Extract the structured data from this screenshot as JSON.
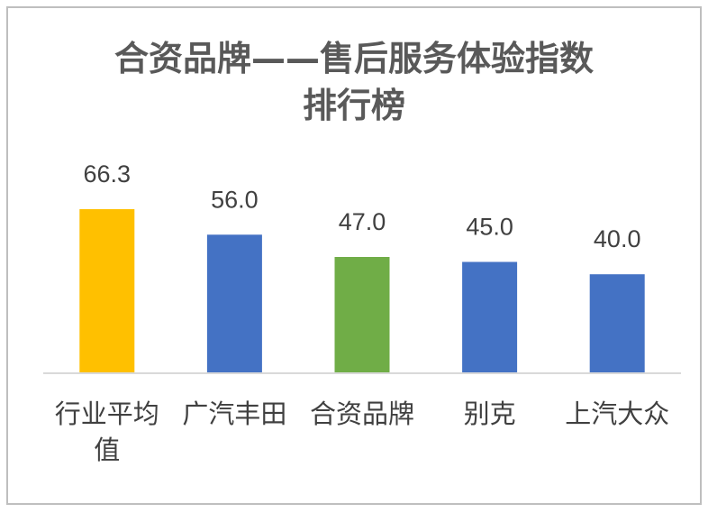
{
  "chart_data": {
    "type": "bar",
    "title_lines": [
      "合资品牌——售后服务体验指数",
      "排行榜"
    ],
    "xlabel": "",
    "ylabel": "",
    "categories": [
      [
        "行业平均",
        "值"
      ],
      [
        "广汽丰田"
      ],
      [
        "合资品牌"
      ],
      [
        "别克"
      ],
      [
        "上汽大众"
      ]
    ],
    "values": [
      66.3,
      56.0,
      47.0,
      45.0,
      40.0
    ],
    "value_labels": [
      "66.3",
      "56.0",
      "47.0",
      "45.0",
      "40.0"
    ],
    "bar_colors": [
      "#ffc000",
      "#4472c4",
      "#70ad47",
      "#4472c4",
      "#4472c4"
    ],
    "ylim": [
      0,
      66.3
    ],
    "grid": false,
    "legend": "none"
  }
}
